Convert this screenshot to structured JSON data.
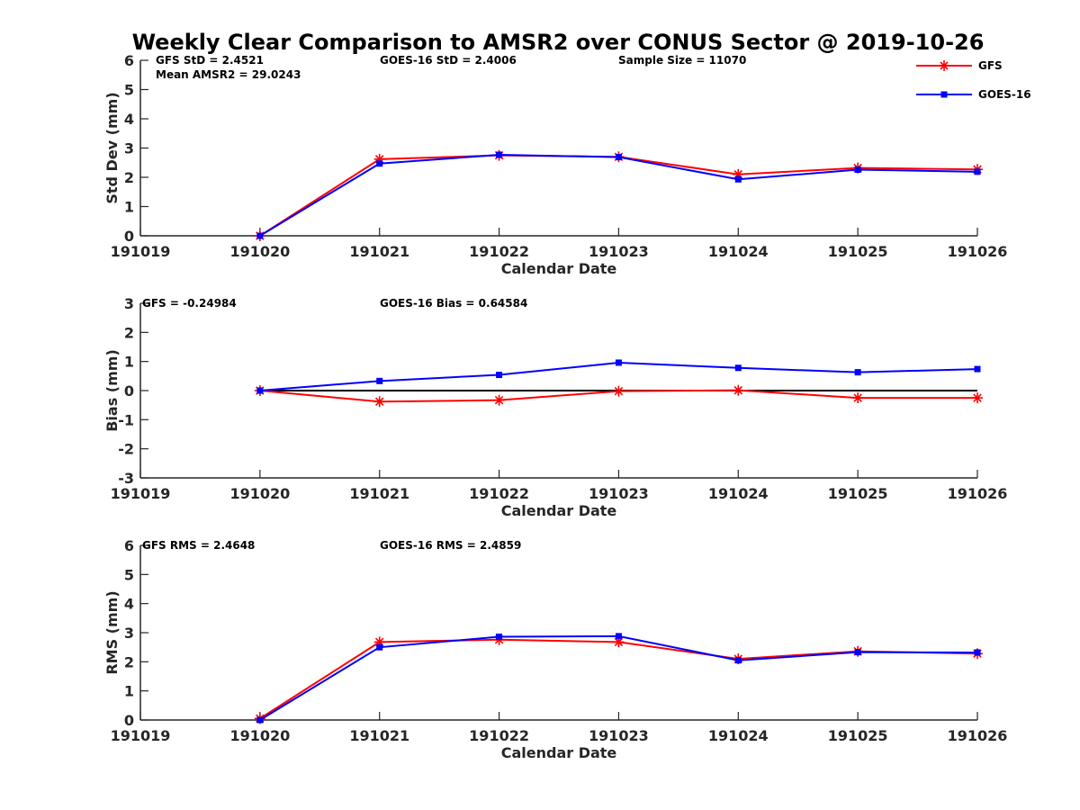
{
  "title": "Weekly Clear Comparison to AMSR2 over CONUS Sector @ 2019-10-26",
  "legend": {
    "placement": "top-right",
    "items": [
      {
        "label": "GFS",
        "color": "#ff0000",
        "marker": "asterisk"
      },
      {
        "label": "GOES-16",
        "color": "#0000ff",
        "marker": "square"
      }
    ]
  },
  "chart_data": [
    {
      "type": "line",
      "xlabel": "Calendar Date",
      "ylabel": "Std Dev (mm)",
      "categories": [
        "191019",
        "191020",
        "191021",
        "191022",
        "191023",
        "191024",
        "191025",
        "191026"
      ],
      "ylim": [
        0,
        6
      ],
      "yticks": [
        "0",
        "1",
        "2",
        "3",
        "4",
        "5",
        "6"
      ],
      "zero_line": false,
      "series": [
        {
          "name": "GFS",
          "color": "#ff0000",
          "marker": "asterisk",
          "values": [
            null,
            0.0,
            2.62,
            2.75,
            2.7,
            2.1,
            2.32,
            2.27
          ]
        },
        {
          "name": "GOES-16",
          "color": "#0000ff",
          "marker": "square",
          "values": [
            null,
            0.0,
            2.47,
            2.77,
            2.69,
            1.93,
            2.26,
            2.19
          ]
        }
      ],
      "annotations": [
        {
          "text": "GFS StD = 2.4521"
        },
        {
          "text": "GOES-16 StD = 2.4006"
        },
        {
          "text": "Sample Size = 11070"
        },
        {
          "text": "Mean AMSR2 = 29.0243"
        }
      ]
    },
    {
      "type": "line",
      "xlabel": "Calendar Date",
      "ylabel": "Bias (mm)",
      "categories": [
        "191019",
        "191020",
        "191021",
        "191022",
        "191023",
        "191024",
        "191025",
        "191026"
      ],
      "ylim": [
        -3,
        3
      ],
      "yticks": [
        "-3",
        "-2",
        "-1",
        "0",
        "1",
        "2",
        "3"
      ],
      "zero_line": true,
      "series": [
        {
          "name": "GFS",
          "color": "#ff0000",
          "marker": "asterisk",
          "values": [
            null,
            0.0,
            -0.38,
            -0.33,
            -0.02,
            0.01,
            -0.25,
            -0.25
          ]
        },
        {
          "name": "GOES-16",
          "color": "#0000ff",
          "marker": "square",
          "values": [
            null,
            0.0,
            0.33,
            0.54,
            0.96,
            0.78,
            0.63,
            0.74
          ]
        }
      ],
      "annotations": [
        {
          "text": "GFS = -0.24984"
        },
        {
          "text": "GOES-16 Bias  = 0.64584"
        }
      ]
    },
    {
      "type": "line",
      "xlabel": "Calendar Date",
      "ylabel": "RMS (mm)",
      "categories": [
        "191019",
        "191020",
        "191021",
        "191022",
        "191023",
        "191024",
        "191025",
        "191026"
      ],
      "ylim": [
        0,
        6
      ],
      "yticks": [
        "0",
        "1",
        "2",
        "3",
        "4",
        "5",
        "6"
      ],
      "zero_line": false,
      "series": [
        {
          "name": "GFS",
          "color": "#ff0000",
          "marker": "asterisk",
          "values": [
            null,
            0.05,
            2.68,
            2.76,
            2.68,
            2.1,
            2.36,
            2.28
          ]
        },
        {
          "name": "GOES-16",
          "color": "#0000ff",
          "marker": "square",
          "values": [
            null,
            0.0,
            2.5,
            2.86,
            2.88,
            2.05,
            2.33,
            2.32
          ]
        }
      ],
      "annotations": [
        {
          "text": "GFS RMS = 2.4648"
        },
        {
          "text": "GOES-16 RMS = 2.4859"
        }
      ]
    }
  ]
}
